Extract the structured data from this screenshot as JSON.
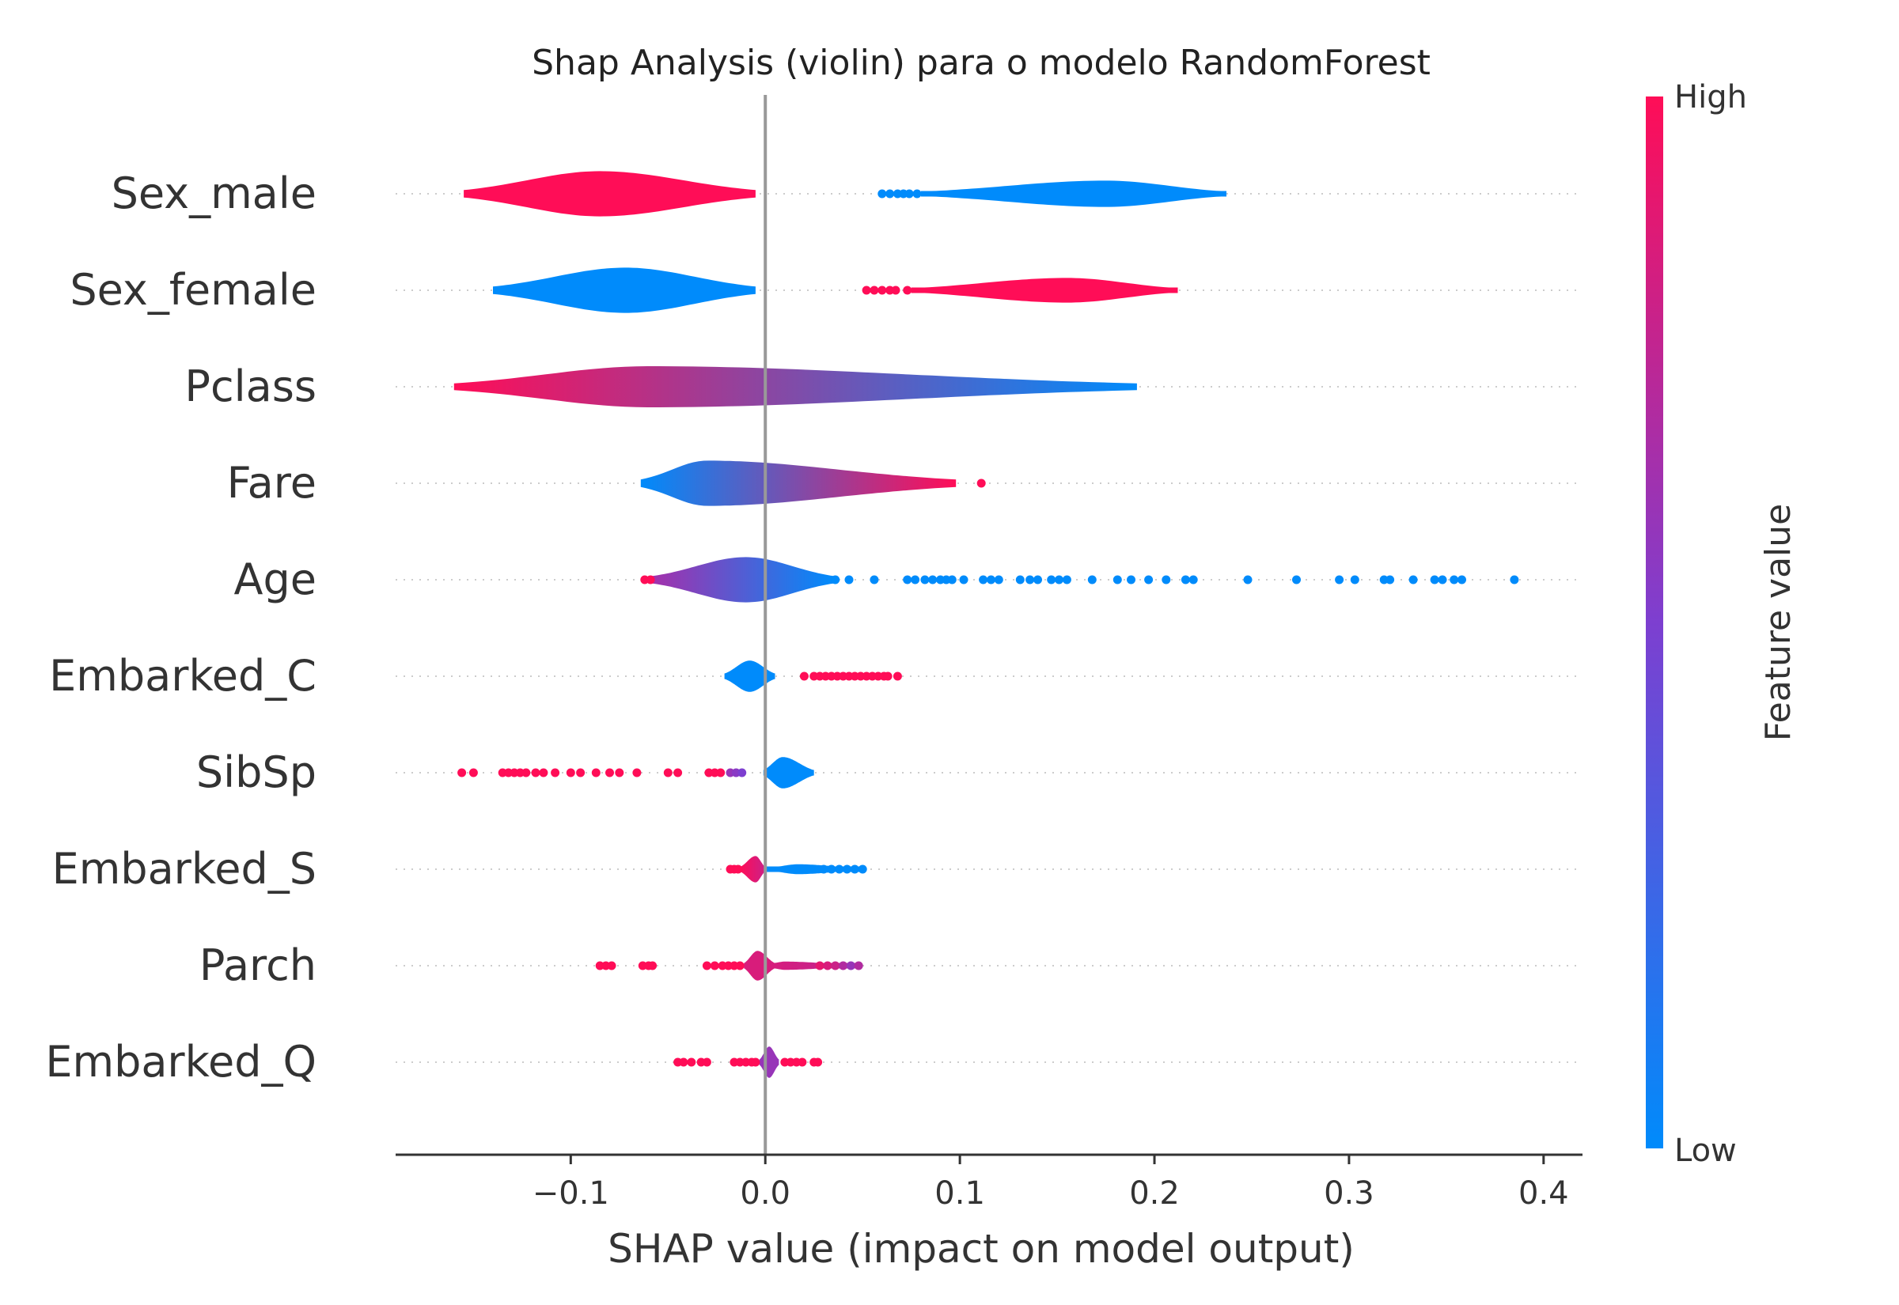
{
  "chart_data": {
    "type": "violin",
    "title": "Shap Analysis (violin) para o modelo RandomForest",
    "xlabel": "SHAP value (impact on model output)",
    "ylabel": "",
    "xlim": [
      -0.19,
      0.42
    ],
    "x_ticks": [
      -0.1,
      0.0,
      0.1,
      0.2,
      0.3,
      0.4
    ],
    "x_tick_labels": [
      "−0.1",
      "0.0",
      "0.1",
      "0.2",
      "0.3",
      "0.4"
    ],
    "grid": false,
    "colorbar": {
      "title": "Feature value",
      "high_label": "High",
      "low_label": "Low",
      "high_color": "#ff0d57",
      "low_color": "#008bfb"
    },
    "features": [
      {
        "name": "Sex_male",
        "violins": [
          {
            "x_min": -0.155,
            "x_max": -0.005,
            "peak_x": -0.085,
            "half_width_max": 0.55,
            "color_low": 1.0,
            "color_high": 1.0
          },
          {
            "x_min": 0.08,
            "x_max": 0.237,
            "peak_x": 0.175,
            "half_width_max": 0.32,
            "color_low": 0.0,
            "color_high": 0.0
          }
        ],
        "points": [
          {
            "x": 0.06,
            "c": 0.0
          },
          {
            "x": 0.064,
            "c": 0.0
          },
          {
            "x": 0.068,
            "c": 0.0
          },
          {
            "x": 0.071,
            "c": 0.0
          },
          {
            "x": 0.074,
            "c": 0.0
          },
          {
            "x": 0.078,
            "c": 0.0
          }
        ]
      },
      {
        "name": "Sex_female",
        "violins": [
          {
            "x_min": -0.14,
            "x_max": -0.005,
            "peak_x": -0.072,
            "half_width_max": 0.55,
            "color_low": 0.0,
            "color_high": 0.0
          },
          {
            "x_min": 0.075,
            "x_max": 0.212,
            "peak_x": 0.155,
            "half_width_max": 0.3,
            "color_low": 1.0,
            "color_high": 1.0
          }
        ],
        "points": [
          {
            "x": 0.052,
            "c": 1.0
          },
          {
            "x": 0.056,
            "c": 1.0
          },
          {
            "x": 0.06,
            "c": 1.0
          },
          {
            "x": 0.064,
            "c": 1.0
          },
          {
            "x": 0.067,
            "c": 1.0
          },
          {
            "x": 0.073,
            "c": 1.0
          }
        ]
      },
      {
        "name": "Pclass",
        "violins": [
          {
            "x_min": -0.16,
            "x_max": 0.191,
            "peak_x": -0.06,
            "half_width_max": 0.5,
            "color_low": 1.0,
            "color_high": 0.0
          }
        ],
        "points": []
      },
      {
        "name": "Fare",
        "violins": [
          {
            "x_min": -0.064,
            "x_max": 0.098,
            "peak_x": -0.03,
            "half_width_max": 0.55,
            "color_low": 0.0,
            "color_high": 1.0
          }
        ],
        "points": [
          {
            "x": 0.111,
            "c": 1.0
          }
        ]
      },
      {
        "name": "Age",
        "violins": [
          {
            "x_min": -0.058,
            "x_max": 0.035,
            "peak_x": -0.01,
            "half_width_max": 0.55,
            "color_low": 0.65,
            "color_high": 0.0
          }
        ],
        "points": [
          {
            "x": -0.062,
            "c": 1.0
          },
          {
            "x": -0.059,
            "c": 1.0
          },
          {
            "x": 0.036,
            "c": 0.0
          },
          {
            "x": 0.043,
            "c": 0.0
          },
          {
            "x": 0.056,
            "c": 0.0
          },
          {
            "x": 0.073,
            "c": 0.0
          },
          {
            "x": 0.077,
            "c": 0.0
          },
          {
            "x": 0.082,
            "c": 0.0
          },
          {
            "x": 0.086,
            "c": 0.0
          },
          {
            "x": 0.09,
            "c": 0.0
          },
          {
            "x": 0.093,
            "c": 0.0
          },
          {
            "x": 0.096,
            "c": 0.0
          },
          {
            "x": 0.102,
            "c": 0.0
          },
          {
            "x": 0.112,
            "c": 0.0
          },
          {
            "x": 0.116,
            "c": 0.0
          },
          {
            "x": 0.12,
            "c": 0.0
          },
          {
            "x": 0.131,
            "c": 0.0
          },
          {
            "x": 0.136,
            "c": 0.0
          },
          {
            "x": 0.14,
            "c": 0.0
          },
          {
            "x": 0.147,
            "c": 0.0
          },
          {
            "x": 0.151,
            "c": 0.0
          },
          {
            "x": 0.155,
            "c": 0.0
          },
          {
            "x": 0.168,
            "c": 0.0
          },
          {
            "x": 0.181,
            "c": 0.0
          },
          {
            "x": 0.188,
            "c": 0.0
          },
          {
            "x": 0.197,
            "c": 0.0
          },
          {
            "x": 0.206,
            "c": 0.0
          },
          {
            "x": 0.216,
            "c": 0.0
          },
          {
            "x": 0.22,
            "c": 0.0
          },
          {
            "x": 0.248,
            "c": 0.0
          },
          {
            "x": 0.273,
            "c": 0.0
          },
          {
            "x": 0.295,
            "c": 0.0
          },
          {
            "x": 0.303,
            "c": 0.0
          },
          {
            "x": 0.318,
            "c": 0.0
          },
          {
            "x": 0.321,
            "c": 0.0
          },
          {
            "x": 0.333,
            "c": 0.0
          },
          {
            "x": 0.344,
            "c": 0.0
          },
          {
            "x": 0.348,
            "c": 0.0
          },
          {
            "x": 0.354,
            "c": 0.0
          },
          {
            "x": 0.358,
            "c": 0.0
          },
          {
            "x": 0.385,
            "c": 0.0
          }
        ]
      },
      {
        "name": "Embarked_C",
        "violins": [
          {
            "x_min": -0.021,
            "x_max": 0.005,
            "peak_x": -0.008,
            "half_width_max": 0.38,
            "color_low": 0.0,
            "color_high": 0.0
          }
        ],
        "points": [
          {
            "x": 0.02,
            "c": 1.0
          },
          {
            "x": 0.025,
            "c": 1.0
          },
          {
            "x": 0.028,
            "c": 1.0
          },
          {
            "x": 0.031,
            "c": 1.0
          },
          {
            "x": 0.034,
            "c": 1.0
          },
          {
            "x": 0.037,
            "c": 1.0
          },
          {
            "x": 0.04,
            "c": 1.0
          },
          {
            "x": 0.043,
            "c": 1.0
          },
          {
            "x": 0.046,
            "c": 1.0
          },
          {
            "x": 0.049,
            "c": 1.0
          },
          {
            "x": 0.052,
            "c": 1.0
          },
          {
            "x": 0.055,
            "c": 1.0
          },
          {
            "x": 0.058,
            "c": 1.0
          },
          {
            "x": 0.061,
            "c": 1.0
          },
          {
            "x": 0.063,
            "c": 1.0
          },
          {
            "x": 0.068,
            "c": 1.0
          }
        ]
      },
      {
        "name": "SibSp",
        "violins": [
          {
            "x_min": -0.001,
            "x_max": 0.025,
            "peak_x": 0.009,
            "half_width_max": 0.38,
            "color_low": 0.0,
            "color_high": 0.0
          }
        ],
        "points": [
          {
            "x": -0.156,
            "c": 1.0
          },
          {
            "x": -0.15,
            "c": 1.0
          },
          {
            "x": -0.135,
            "c": 1.0
          },
          {
            "x": -0.132,
            "c": 1.0
          },
          {
            "x": -0.129,
            "c": 1.0
          },
          {
            "x": -0.126,
            "c": 1.0
          },
          {
            "x": -0.123,
            "c": 1.0
          },
          {
            "x": -0.118,
            "c": 1.0
          },
          {
            "x": -0.114,
            "c": 1.0
          },
          {
            "x": -0.108,
            "c": 1.0
          },
          {
            "x": -0.1,
            "c": 1.0
          },
          {
            "x": -0.095,
            "c": 1.0
          },
          {
            "x": -0.087,
            "c": 1.0
          },
          {
            "x": -0.08,
            "c": 1.0
          },
          {
            "x": -0.075,
            "c": 1.0
          },
          {
            "x": -0.066,
            "c": 1.0
          },
          {
            "x": -0.05,
            "c": 1.0
          },
          {
            "x": -0.045,
            "c": 1.0
          },
          {
            "x": -0.029,
            "c": 1.0
          },
          {
            "x": -0.026,
            "c": 1.0
          },
          {
            "x": -0.023,
            "c": 1.0
          },
          {
            "x": -0.018,
            "c": 0.6
          },
          {
            "x": -0.015,
            "c": 0.55
          },
          {
            "x": -0.012,
            "c": 0.5
          }
        ]
      },
      {
        "name": "Embarked_S",
        "violins": [
          {
            "x_min": -0.013,
            "x_max": 0.0,
            "peak_x": -0.005,
            "half_width_max": 0.32,
            "color_low": 1.0,
            "color_high": 0.8
          },
          {
            "x_min": 0.0,
            "x_max": 0.05,
            "peak_x": 0.017,
            "half_width_max": 0.12,
            "color_low": 0.0,
            "color_high": 0.0
          }
        ],
        "points": [
          {
            "x": -0.018,
            "c": 1.0
          },
          {
            "x": -0.016,
            "c": 1.0
          },
          {
            "x": -0.014,
            "c": 1.0
          },
          {
            "x": 0.03,
            "c": 0.0
          },
          {
            "x": 0.034,
            "c": 0.0
          },
          {
            "x": 0.038,
            "c": 0.0
          },
          {
            "x": 0.042,
            "c": 0.0
          },
          {
            "x": 0.046,
            "c": 0.0
          },
          {
            "x": 0.05,
            "c": 0.0
          }
        ]
      },
      {
        "name": "Parch",
        "violins": [
          {
            "x_min": -0.011,
            "x_max": 0.005,
            "peak_x": -0.004,
            "half_width_max": 0.36,
            "color_low": 0.85,
            "color_high": 0.85
          },
          {
            "x_min": 0.0,
            "x_max": 0.048,
            "peak_x": 0.01,
            "half_width_max": 0.1,
            "color_low": 0.85,
            "color_high": 0.75
          }
        ],
        "points": [
          {
            "x": -0.085,
            "c": 1.0
          },
          {
            "x": -0.082,
            "c": 1.0
          },
          {
            "x": -0.079,
            "c": 1.0
          },
          {
            "x": -0.063,
            "c": 1.0
          },
          {
            "x": -0.06,
            "c": 1.0
          },
          {
            "x": -0.058,
            "c": 1.0
          },
          {
            "x": -0.03,
            "c": 1.0
          },
          {
            "x": -0.026,
            "c": 1.0
          },
          {
            "x": -0.022,
            "c": 1.0
          },
          {
            "x": -0.019,
            "c": 1.0
          },
          {
            "x": -0.016,
            "c": 1.0
          },
          {
            "x": -0.013,
            "c": 1.0
          },
          {
            "x": 0.028,
            "c": 0.9
          },
          {
            "x": 0.032,
            "c": 0.85
          },
          {
            "x": 0.036,
            "c": 0.8
          },
          {
            "x": 0.04,
            "c": 0.7
          },
          {
            "x": 0.044,
            "c": 0.6
          },
          {
            "x": 0.048,
            "c": 0.7
          }
        ]
      },
      {
        "name": "Embarked_Q",
        "violins": [
          {
            "x_min": -0.003,
            "x_max": 0.007,
            "peak_x": 0.002,
            "half_width_max": 0.38,
            "color_low": 0.6,
            "color_high": 0.6
          }
        ],
        "points": [
          {
            "x": -0.045,
            "c": 1.0
          },
          {
            "x": -0.042,
            "c": 1.0
          },
          {
            "x": -0.038,
            "c": 1.0
          },
          {
            "x": -0.033,
            "c": 1.0
          },
          {
            "x": -0.03,
            "c": 1.0
          },
          {
            "x": -0.016,
            "c": 1.0
          },
          {
            "x": -0.013,
            "c": 1.0
          },
          {
            "x": -0.01,
            "c": 1.0
          },
          {
            "x": -0.007,
            "c": 1.0
          },
          {
            "x": -0.005,
            "c": 1.0
          },
          {
            "x": 0.01,
            "c": 1.0
          },
          {
            "x": 0.013,
            "c": 1.0
          },
          {
            "x": 0.016,
            "c": 1.0
          },
          {
            "x": 0.019,
            "c": 1.0
          },
          {
            "x": 0.025,
            "c": 1.0
          },
          {
            "x": 0.027,
            "c": 1.0
          }
        ]
      }
    ]
  }
}
